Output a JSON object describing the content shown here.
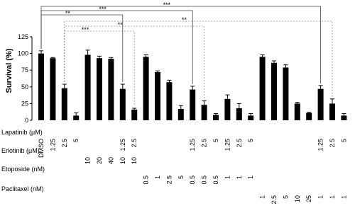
{
  "chart_data": {
    "type": "bar",
    "y_label": "Survival (%)",
    "color": "#000000",
    "ylim": [
      0,
      125
    ],
    "yticks": [
      0,
      25,
      50,
      75,
      100,
      125
    ],
    "values": [
      100,
      93,
      48,
      7,
      98,
      93,
      92,
      47,
      16,
      95,
      72,
      57,
      17,
      46,
      23,
      8,
      32,
      18,
      7,
      95,
      86,
      79,
      25,
      11,
      47,
      25,
      7
    ],
    "errors": [
      4,
      1,
      6,
      4,
      7,
      3,
      2,
      7,
      2,
      3,
      2,
      3,
      5,
      5,
      6,
      2,
      6,
      7,
      3,
      3,
      3,
      4,
      2,
      1,
      5,
      7,
      3
    ],
    "conditions": [
      {
        "name": "Lapatinib (μM)",
        "labels": [
          "DMSO",
          "1.25",
          "2.5",
          "5",
          null,
          null,
          null,
          "1.25",
          "2.5",
          null,
          null,
          null,
          null,
          "1.25",
          "2.5",
          "5",
          "1.25",
          "2.5",
          "5",
          null,
          null,
          null,
          null,
          null,
          "1.25",
          "2.5",
          "5"
        ]
      },
      {
        "name": "Erlotinib (μM)",
        "labels": [
          null,
          null,
          null,
          null,
          "10",
          "20",
          "40",
          "10",
          "10",
          null,
          null,
          null,
          null,
          null,
          null,
          null,
          null,
          null,
          null,
          null,
          null,
          null,
          null,
          null,
          null,
          null,
          null
        ]
      },
      {
        "name": "Etoposide (nM)",
        "labels": [
          null,
          null,
          null,
          null,
          null,
          null,
          null,
          null,
          null,
          "0.5",
          "1",
          "2.5",
          "5",
          "0.5",
          "0.5",
          "0.5",
          "1",
          "1",
          "1",
          null,
          null,
          null,
          null,
          null,
          null,
          null,
          null
        ]
      },
      {
        "name": "Paclitaxel (nM)",
        "labels": [
          null,
          null,
          null,
          null,
          null,
          null,
          null,
          null,
          null,
          null,
          null,
          null,
          null,
          null,
          null,
          null,
          null,
          null,
          null,
          "1",
          "2.5",
          "5",
          "10",
          "25",
          "1",
          "1",
          "1"
        ]
      }
    ],
    "significance": [
      {
        "from": 0,
        "to": 24,
        "label": "***",
        "dashed": false
      },
      {
        "from": 0,
        "to": 13,
        "label": "***",
        "dashed": false
      },
      {
        "from": 0,
        "to": 7,
        "label": "**",
        "dashed": false
      },
      {
        "from": 2,
        "to": 25,
        "label": "**",
        "dashed": true
      },
      {
        "from": 2,
        "to": 14,
        "label": "**",
        "dashed": true
      },
      {
        "from": 2,
        "to": 8,
        "label": "***",
        "dashed": true
      }
    ]
  }
}
